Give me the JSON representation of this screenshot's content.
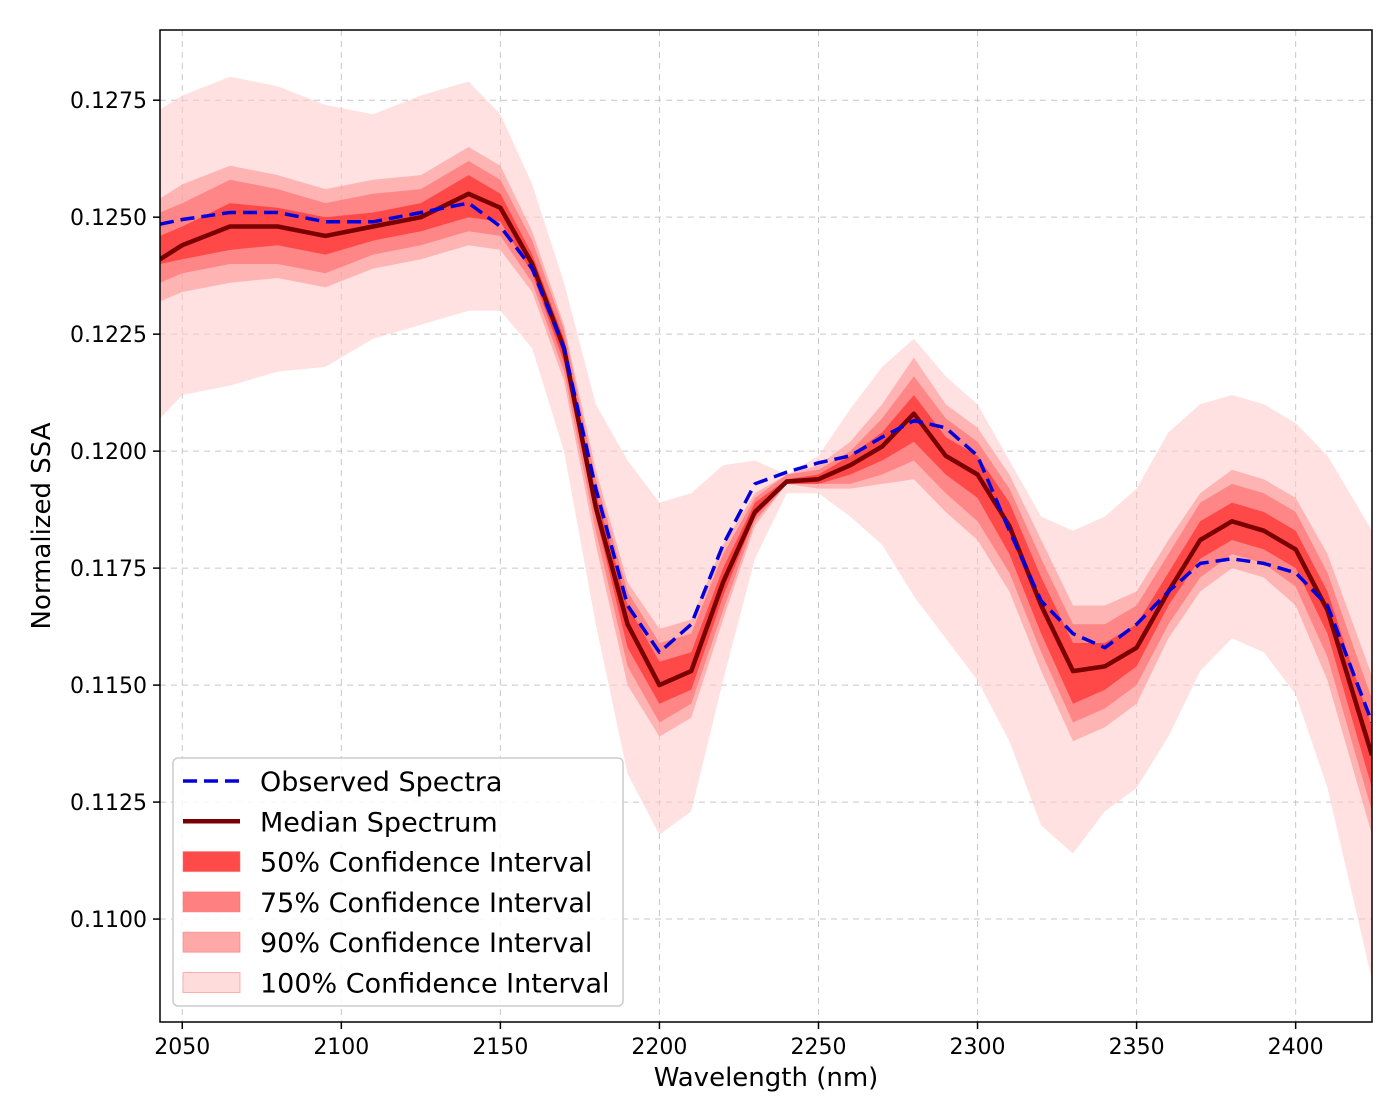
{
  "chart_data": {
    "type": "area",
    "title": "",
    "xlabel": "Wavelength (nm)",
    "ylabel": "Normalized SSA",
    "xlim": [
      2043,
      2424
    ],
    "ylim": [
      0.1078,
      0.129
    ],
    "xticks": [
      2050,
      2100,
      2150,
      2200,
      2250,
      2300,
      2350,
      2400
    ],
    "xtick_labels": [
      "2050",
      "2100",
      "2150",
      "2200",
      "2250",
      "2300",
      "2350",
      "2400"
    ],
    "yticks": [
      0.11,
      0.1125,
      0.115,
      0.1175,
      0.12,
      0.1225,
      0.125,
      0.1275
    ],
    "ytick_labels": [
      "0.1100",
      "0.1125",
      "0.1150",
      "0.1175",
      "0.1200",
      "0.1225",
      "0.1250",
      "0.1275"
    ],
    "grid": true,
    "legend_position": "lower-left",
    "x": [
      2043,
      2050,
      2065,
      2080,
      2095,
      2110,
      2125,
      2140,
      2150,
      2160,
      2170,
      2180,
      2190,
      2200,
      2210,
      2220,
      2230,
      2240,
      2250,
      2260,
      2270,
      2280,
      2290,
      2300,
      2310,
      2320,
      2330,
      2340,
      2350,
      2360,
      2370,
      2380,
      2390,
      2400,
      2410,
      2424
    ],
    "series": [
      {
        "name": "Observed Spectra",
        "style": "dashed",
        "color": "#0000dd",
        "values": [
          0.12485,
          0.12495,
          0.1251,
          0.1251,
          0.1249,
          0.1249,
          0.1251,
          0.1253,
          0.1248,
          0.1239,
          0.1222,
          0.1192,
          0.1167,
          0.1157,
          0.1163,
          0.118,
          0.1193,
          0.11955,
          0.11975,
          0.1199,
          0.1203,
          0.12065,
          0.1205,
          0.1199,
          0.1183,
          0.1168,
          0.1161,
          0.1158,
          0.1163,
          0.117,
          0.1176,
          0.1177,
          0.1176,
          0.1174,
          0.1167,
          0.1142
        ]
      },
      {
        "name": "Median Spectrum",
        "style": "solid",
        "color": "#7a0000",
        "values": [
          0.1241,
          0.1244,
          0.1248,
          0.1248,
          0.1246,
          0.1248,
          0.125,
          0.1255,
          0.1252,
          0.124,
          0.1222,
          0.1188,
          0.1163,
          0.115,
          0.1153,
          0.1172,
          0.1187,
          0.11935,
          0.1194,
          0.1197,
          0.1201,
          0.1208,
          0.1199,
          0.1195,
          0.1184,
          0.1167,
          0.1153,
          0.1154,
          0.1158,
          0.117,
          0.1181,
          0.1185,
          0.1183,
          0.1179,
          0.1166,
          0.1135
        ]
      }
    ],
    "bands": [
      {
        "name": "100% Confidence Interval",
        "color": "#ffc8c8",
        "opacity": 0.55,
        "lower": [
          0.1207,
          0.1212,
          0.1214,
          0.1217,
          0.1218,
          0.1224,
          0.1227,
          0.123,
          0.123,
          0.1222,
          0.12,
          0.1163,
          0.1131,
          0.1118,
          0.1123,
          0.1151,
          0.1177,
          0.1191,
          0.1191,
          0.1186,
          0.118,
          0.1169,
          0.116,
          0.1151,
          0.1138,
          0.112,
          0.1114,
          0.1123,
          0.1128,
          0.1139,
          0.1153,
          0.116,
          0.1157,
          0.1148,
          0.1128,
          0.1087
        ]
      },
      {
        "name": "90% Confidence Interval",
        "color": "#ff9090",
        "opacity": 0.55,
        "lower": [
          0.1232,
          0.1234,
          0.1236,
          0.1237,
          0.1235,
          0.1239,
          0.1241,
          0.1244,
          0.1243,
          0.1234,
          0.1215,
          0.118,
          0.115,
          0.1139,
          0.1143,
          0.1164,
          0.1184,
          0.1193,
          0.1192,
          0.1192,
          0.1193,
          0.1194,
          0.1187,
          0.1181,
          0.117,
          0.1153,
          0.1138,
          0.1141,
          0.1146,
          0.116,
          0.117,
          0.1175,
          0.1173,
          0.1167,
          0.1151,
          0.1118
        ]
      },
      {
        "name": "75% Confidence Interval",
        "color": "#ff6060",
        "opacity": 0.55,
        "lower": [
          0.1236,
          0.1238,
          0.124,
          0.124,
          0.1238,
          0.1242,
          0.1244,
          0.1247,
          0.1246,
          0.1236,
          0.1217,
          0.1183,
          0.1154,
          0.1142,
          0.1146,
          0.1166,
          0.1185,
          0.1193,
          0.1193,
          0.1193,
          0.1195,
          0.1198,
          0.1191,
          0.1185,
          0.1174,
          0.1157,
          0.1142,
          0.1145,
          0.115,
          0.1163,
          0.1173,
          0.1178,
          0.1176,
          0.1171,
          0.1156,
          0.1123
        ]
      },
      {
        "name": "50% Confidence Interval",
        "color": "#ff2020",
        "opacity": 0.6,
        "lower": [
          0.124,
          0.1241,
          0.1243,
          0.1244,
          0.1242,
          0.1245,
          0.1247,
          0.125,
          0.1249,
          0.1238,
          0.1219,
          0.1186,
          0.1158,
          0.1146,
          0.1149,
          0.1169,
          0.1186,
          0.1193,
          0.1193,
          0.1195,
          0.1198,
          0.1202,
          0.1195,
          0.119,
          0.1178,
          0.1161,
          0.1146,
          0.1149,
          0.1154,
          0.1167,
          0.1177,
          0.1181,
          0.1179,
          0.1175,
          0.1161,
          0.1128
        ]
      }
    ],
    "band_uppers": [
      [
        0.1273,
        0.1276,
        0.128,
        0.1278,
        0.1274,
        0.1272,
        0.1276,
        0.1279,
        0.1272,
        0.1257,
        0.1236,
        0.121,
        0.1198,
        0.1189,
        0.1191,
        0.1197,
        0.1198,
        0.1195,
        0.1199,
        0.1209,
        0.1218,
        0.1224,
        0.1216,
        0.121,
        0.1198,
        0.1186,
        0.1183,
        0.1186,
        0.1192,
        0.1204,
        0.121,
        0.1212,
        0.121,
        0.1206,
        0.1199,
        0.1183
      ],
      [
        0.1254,
        0.1257,
        0.1261,
        0.1259,
        0.1256,
        0.1258,
        0.1259,
        0.1265,
        0.1261,
        0.1247,
        0.1227,
        0.1196,
        0.1172,
        0.1162,
        0.1164,
        0.118,
        0.1191,
        0.1195,
        0.1197,
        0.1202,
        0.121,
        0.122,
        0.121,
        0.1205,
        0.1195,
        0.1181,
        0.1167,
        0.1167,
        0.117,
        0.1181,
        0.1191,
        0.1196,
        0.1194,
        0.119,
        0.1178,
        0.1152
      ],
      [
        0.1251,
        0.1253,
        0.1258,
        0.1256,
        0.1253,
        0.1255,
        0.1256,
        0.1262,
        0.1258,
        0.1245,
        0.1226,
        0.1194,
        0.117,
        0.1159,
        0.1161,
        0.1178,
        0.119,
        0.1195,
        0.1196,
        0.12,
        0.1207,
        0.1216,
        0.1207,
        0.1202,
        0.1192,
        0.1177,
        0.1163,
        0.1163,
        0.1167,
        0.1178,
        0.1189,
        0.1193,
        0.1191,
        0.1187,
        0.1174,
        0.1147
      ],
      [
        0.1246,
        0.1248,
        0.1253,
        0.1252,
        0.125,
        0.1251,
        0.1253,
        0.1259,
        0.1255,
        0.1242,
        0.1224,
        0.1191,
        0.1167,
        0.1155,
        0.1157,
        0.1175,
        0.1189,
        0.1194,
        0.1195,
        0.1199,
        0.1204,
        0.1212,
        0.1203,
        0.1199,
        0.1189,
        0.1173,
        0.1159,
        0.1159,
        0.1163,
        0.1174,
        0.1185,
        0.1189,
        0.1187,
        0.1183,
        0.117,
        0.1141
      ]
    ],
    "legend": [
      {
        "label": "Observed Spectra",
        "kind": "dashed-line",
        "color": "#0000dd"
      },
      {
        "label": "Median Spectrum",
        "kind": "line",
        "color": "#7a0000"
      },
      {
        "label": "50% Confidence Interval",
        "kind": "patch",
        "color": "#ff4a4a"
      },
      {
        "label": "75% Confidence Interval",
        "kind": "patch",
        "color": "#ff8080"
      },
      {
        "label": "90% Confidence Interval",
        "kind": "patch",
        "color": "#ffa8a8"
      },
      {
        "label": "100% Confidence Interval",
        "kind": "patch",
        "color": "#ffdcdc"
      }
    ]
  }
}
